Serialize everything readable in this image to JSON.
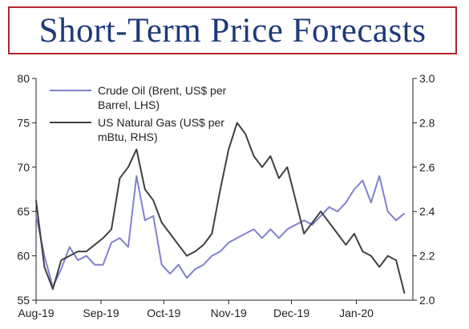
{
  "title": "Short-Term Price Forecasts",
  "chart_data": {
    "type": "line",
    "x_ticks": [
      "Aug-19",
      "Sep-19",
      "Oct-19",
      "Nov-19",
      "Dec-19",
      "Jan-20"
    ],
    "x": [
      "2019-08-01",
      "2019-08-05",
      "2019-08-09",
      "2019-08-13",
      "2019-08-17",
      "2019-08-21",
      "2019-08-25",
      "2019-08-29",
      "2019-09-02",
      "2019-09-06",
      "2019-09-10",
      "2019-09-14",
      "2019-09-18",
      "2019-09-22",
      "2019-09-26",
      "2019-09-30",
      "2019-10-04",
      "2019-10-08",
      "2019-10-12",
      "2019-10-16",
      "2019-10-20",
      "2019-10-24",
      "2019-10-28",
      "2019-11-01",
      "2019-11-05",
      "2019-11-09",
      "2019-11-13",
      "2019-11-17",
      "2019-11-21",
      "2019-11-25",
      "2019-11-29",
      "2019-12-03",
      "2019-12-07",
      "2019-12-11",
      "2019-12-15",
      "2019-12-19",
      "2019-12-23",
      "2019-12-27",
      "2019-12-31",
      "2020-01-04",
      "2020-01-08",
      "2020-01-12",
      "2020-01-16",
      "2020-01-20",
      "2020-01-24"
    ],
    "series": [
      {
        "name": "Crude Oil (Brent, US$ per Barrel, LHS)",
        "axis": "left",
        "color": "#8080d0",
        "values": [
          64.5,
          60.0,
          56.5,
          58.5,
          61.0,
          59.5,
          60.0,
          59.0,
          59.0,
          61.5,
          62.0,
          61.0,
          69.0,
          64.0,
          64.5,
          59.0,
          58.0,
          59.0,
          57.5,
          58.5,
          59.0,
          60.0,
          60.5,
          61.5,
          62.0,
          62.5,
          63.0,
          62.0,
          63.0,
          62.0,
          63.0,
          63.5,
          64.0,
          63.5,
          64.5,
          65.5,
          65.0,
          66.0,
          67.5,
          68.5,
          66.0,
          69.0,
          65.0,
          64.0,
          64.8
        ]
      },
      {
        "name": "US Natural Gas (US$ per mBtu, RHS)",
        "axis": "right",
        "color": "#404040",
        "values": [
          2.45,
          2.15,
          2.05,
          2.18,
          2.2,
          2.22,
          2.22,
          2.25,
          2.28,
          2.32,
          2.55,
          2.6,
          2.68,
          2.5,
          2.45,
          2.35,
          2.3,
          2.25,
          2.2,
          2.22,
          2.25,
          2.3,
          2.5,
          2.68,
          2.8,
          2.75,
          2.65,
          2.6,
          2.65,
          2.55,
          2.6,
          2.45,
          2.3,
          2.35,
          2.4,
          2.35,
          2.3,
          2.25,
          2.3,
          2.22,
          2.2,
          2.15,
          2.2,
          2.18,
          2.03
        ]
      }
    ],
    "ylim_left": [
      55,
      80
    ],
    "ylim_right": [
      2.0,
      3.0
    ],
    "yticks_left": [
      55,
      60,
      65,
      70,
      75,
      80
    ],
    "yticks_right": [
      "2.0",
      "2.2",
      "2.4",
      "2.6",
      "2.8",
      "3.0"
    ],
    "legend": {
      "position": "top-left",
      "entries": [
        {
          "text_lines": [
            "Crude Oil (Brent, US$ per",
            "Barrel, LHS)"
          ],
          "color": "#8080d0"
        },
        {
          "text_lines": [
            "US Natural Gas (US$ per",
            "mBtu, RHS)"
          ],
          "color": "#404040"
        }
      ]
    },
    "grid": false
  }
}
